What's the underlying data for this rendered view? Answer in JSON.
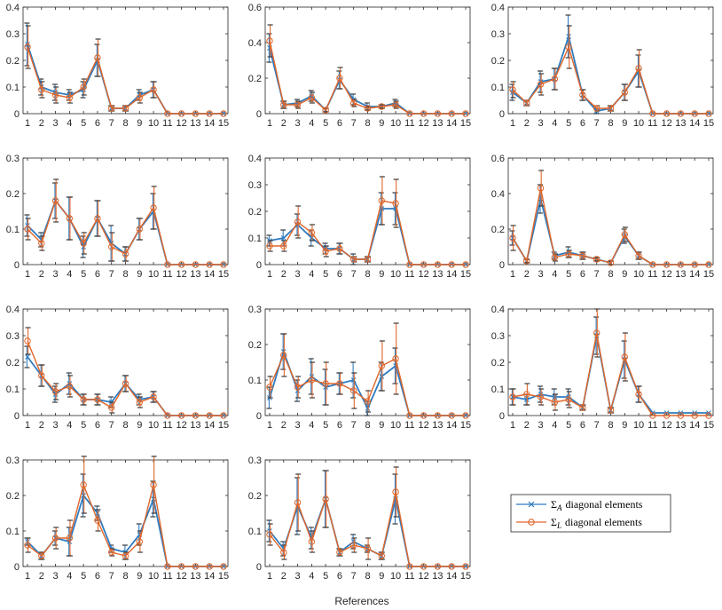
{
  "colors": {
    "sigma_a": "#2e7bbf",
    "sigma_l": "#e0662a",
    "axis": "#262626",
    "errorbar": "#3a3a3a"
  },
  "figure": {
    "xlabel": "References"
  },
  "legend": {
    "placement": "right, bottom row",
    "entries": [
      {
        "sym": "Σ",
        "sub": "A",
        "text": "diagonal elements",
        "marker": "x"
      },
      {
        "sym": "Σ",
        "sub": "L",
        "text": "diagonal elements",
        "marker": "o"
      }
    ]
  },
  "chart_data": [
    {
      "type": "line",
      "x": [
        1,
        2,
        3,
        4,
        5,
        6,
        7,
        8,
        9,
        10,
        11,
        12,
        13,
        14,
        15
      ],
      "ylim": [
        0,
        0.4
      ],
      "yticks": [
        "0",
        "0.1",
        "0.2",
        "0.3",
        "0.4"
      ],
      "grid": false,
      "series": [
        {
          "name": "ΣA diagonal elements",
          "values": [
            0.26,
            0.1,
            0.08,
            0.07,
            0.09,
            0.2,
            0.02,
            0.02,
            0.07,
            0.09,
            0,
            0,
            0,
            0,
            0
          ],
          "err": [
            0.08,
            0.03,
            0.03,
            0.02,
            0.03,
            0.06,
            0.01,
            0.01,
            0.02,
            0.03,
            0,
            0,
            0,
            0,
            0
          ]
        },
        {
          "name": "ΣL diagonal elements",
          "values": [
            0.25,
            0.09,
            0.07,
            0.06,
            0.1,
            0.21,
            0.02,
            0.02,
            0.06,
            0.09,
            0,
            0,
            0,
            0,
            0
          ],
          "err": [
            0.08,
            0.03,
            0.03,
            0.02,
            0.03,
            0.07,
            0.01,
            0.01,
            0.02,
            0.03,
            0,
            0,
            0,
            0,
            0
          ]
        }
      ]
    },
    {
      "type": "line",
      "x": [
        1,
        2,
        3,
        4,
        5,
        6,
        7,
        8,
        9,
        10,
        11,
        12,
        13,
        14,
        15
      ],
      "ylim": [
        0,
        0.6
      ],
      "yticks": [
        "0",
        "0.2",
        "0.4",
        "0.6"
      ],
      "grid": false,
      "series": [
        {
          "name": "ΣA diagonal elements",
          "values": [
            0.37,
            0.05,
            0.06,
            0.1,
            0.02,
            0.19,
            0.08,
            0.04,
            0.04,
            0.06,
            0,
            0,
            0,
            0,
            0
          ],
          "err": [
            0.08,
            0.02,
            0.02,
            0.03,
            0.01,
            0.05,
            0.03,
            0.02,
            0.01,
            0.02,
            0,
            0,
            0,
            0,
            0
          ]
        },
        {
          "name": "ΣL diagonal elements",
          "values": [
            0.41,
            0.05,
            0.05,
            0.09,
            0.02,
            0.2,
            0.06,
            0.03,
            0.04,
            0.05,
            0,
            0,
            0,
            0,
            0
          ],
          "err": [
            0.09,
            0.02,
            0.02,
            0.03,
            0.01,
            0.06,
            0.02,
            0.01,
            0.01,
            0.02,
            0,
            0,
            0,
            0,
            0
          ]
        }
      ]
    },
    {
      "type": "line",
      "x": [
        1,
        2,
        3,
        4,
        5,
        6,
        7,
        8,
        9,
        10,
        11,
        12,
        13,
        14,
        15
      ],
      "ylim": [
        0,
        0.4
      ],
      "yticks": [
        "0",
        "0.1",
        "0.2",
        "0.3",
        "0.4"
      ],
      "grid": false,
      "series": [
        {
          "name": "ΣA diagonal elements",
          "values": [
            0.08,
            0.04,
            0.12,
            0.13,
            0.29,
            0.07,
            0.01,
            0.02,
            0.08,
            0.16,
            0,
            0,
            0,
            0,
            0
          ],
          "err": [
            0.03,
            0.01,
            0.04,
            0.04,
            0.08,
            0.02,
            0.01,
            0.01,
            0.03,
            0.06,
            0,
            0,
            0,
            0,
            0
          ]
        },
        {
          "name": "ΣL diagonal elements",
          "values": [
            0.09,
            0.04,
            0.11,
            0.13,
            0.25,
            0.07,
            0.02,
            0.02,
            0.08,
            0.17,
            0,
            0,
            0,
            0,
            0
          ],
          "err": [
            0.03,
            0.01,
            0.04,
            0.04,
            0.08,
            0.02,
            0.01,
            0.01,
            0.03,
            0.07,
            0,
            0,
            0,
            0,
            0
          ]
        }
      ]
    },
    {
      "type": "line",
      "x": [
        1,
        2,
        3,
        4,
        5,
        6,
        7,
        8,
        9,
        10,
        11,
        12,
        13,
        14,
        15
      ],
      "ylim": [
        0,
        0.3
      ],
      "yticks": [
        "0",
        "0.1",
        "0.2",
        "0.3"
      ],
      "grid": false,
      "series": [
        {
          "name": "ΣA diagonal elements",
          "values": [
            0.11,
            0.07,
            0.18,
            0.13,
            0.05,
            0.13,
            0.06,
            0.03,
            0.1,
            0.15,
            0,
            0,
            0,
            0,
            0
          ],
          "err": [
            0.03,
            0.02,
            0.05,
            0.06,
            0.03,
            0.05,
            0.05,
            0.02,
            0.03,
            0.05,
            0,
            0,
            0,
            0,
            0
          ]
        },
        {
          "name": "ΣL diagonal elements",
          "values": [
            0.1,
            0.06,
            0.18,
            0.13,
            0.06,
            0.13,
            0.05,
            0.03,
            0.1,
            0.16,
            0,
            0,
            0,
            0,
            0
          ],
          "err": [
            0.03,
            0.02,
            0.06,
            0.06,
            0.03,
            0.05,
            0.04,
            0.02,
            0.03,
            0.06,
            0,
            0,
            0,
            0,
            0
          ]
        }
      ]
    },
    {
      "type": "line",
      "x": [
        1,
        2,
        3,
        4,
        5,
        6,
        7,
        8,
        9,
        10,
        11,
        12,
        13,
        14,
        15
      ],
      "ylim": [
        0,
        0.4
      ],
      "yticks": [
        "0",
        "0.1",
        "0.2",
        "0.3",
        "0.4"
      ],
      "grid": false,
      "series": [
        {
          "name": "ΣA diagonal elements",
          "values": [
            0.09,
            0.1,
            0.15,
            0.1,
            0.06,
            0.06,
            0.02,
            0.02,
            0.21,
            0.21,
            0,
            0,
            0,
            0,
            0
          ],
          "err": [
            0.02,
            0.03,
            0.04,
            0.03,
            0.02,
            0.02,
            0.02,
            0.01,
            0.06,
            0.06,
            0,
            0,
            0,
            0,
            0
          ]
        },
        {
          "name": "ΣL diagonal elements",
          "values": [
            0.07,
            0.07,
            0.16,
            0.12,
            0.05,
            0.06,
            0.02,
            0.02,
            0.24,
            0.23,
            0,
            0,
            0,
            0,
            0
          ],
          "err": [
            0.02,
            0.02,
            0.06,
            0.03,
            0.02,
            0.02,
            0.01,
            0.01,
            0.09,
            0.09,
            0,
            0,
            0,
            0,
            0
          ]
        }
      ]
    },
    {
      "type": "line",
      "x": [
        1,
        2,
        3,
        4,
        5,
        6,
        7,
        8,
        9,
        10,
        11,
        12,
        13,
        14,
        15
      ],
      "ylim": [
        0,
        0.6
      ],
      "yticks": [
        "0",
        "0.2",
        "0.4",
        "0.6"
      ],
      "grid": false,
      "series": [
        {
          "name": "ΣA diagonal elements",
          "values": [
            0.15,
            0.02,
            0.37,
            0.05,
            0.07,
            0.05,
            0.03,
            0.01,
            0.16,
            0.05,
            0,
            0,
            0,
            0,
            0
          ],
          "err": [
            0.04,
            0.01,
            0.08,
            0.02,
            0.03,
            0.02,
            0.01,
            0.01,
            0.04,
            0.02,
            0,
            0,
            0,
            0,
            0
          ]
        },
        {
          "name": "ΣL diagonal elements",
          "values": [
            0.15,
            0.02,
            0.43,
            0.04,
            0.06,
            0.05,
            0.03,
            0.01,
            0.17,
            0.05,
            0,
            0,
            0,
            0,
            0
          ],
          "err": [
            0.07,
            0.01,
            0.1,
            0.02,
            0.02,
            0.02,
            0.01,
            0.01,
            0.04,
            0.02,
            0,
            0,
            0,
            0,
            0
          ]
        }
      ]
    },
    {
      "type": "line",
      "x": [
        1,
        2,
        3,
        4,
        5,
        6,
        7,
        8,
        9,
        10,
        11,
        12,
        13,
        14,
        15
      ],
      "ylim": [
        0,
        0.4
      ],
      "yticks": [
        "0",
        "0.1",
        "0.2",
        "0.3",
        "0.4"
      ],
      "grid": false,
      "series": [
        {
          "name": "ΣA diagonal elements",
          "values": [
            0.22,
            0.15,
            0.08,
            0.12,
            0.06,
            0.06,
            0.05,
            0.12,
            0.06,
            0.07,
            0,
            0,
            0,
            0,
            0
          ],
          "err": [
            0.04,
            0.04,
            0.03,
            0.04,
            0.02,
            0.02,
            0.02,
            0.03,
            0.02,
            0.02,
            0,
            0,
            0,
            0,
            0
          ]
        },
        {
          "name": "ΣL diagonal elements",
          "values": [
            0.28,
            0.15,
            0.09,
            0.11,
            0.06,
            0.06,
            0.03,
            0.12,
            0.05,
            0.07,
            0,
            0,
            0,
            0,
            0
          ],
          "err": [
            0.05,
            0.04,
            0.03,
            0.04,
            0.02,
            0.02,
            0.02,
            0.03,
            0.02,
            0.02,
            0,
            0,
            0,
            0,
            0
          ]
        }
      ]
    },
    {
      "type": "line",
      "x": [
        1,
        2,
        3,
        4,
        5,
        6,
        7,
        8,
        9,
        10,
        11,
        12,
        13,
        14,
        15
      ],
      "ylim": [
        0,
        0.3
      ],
      "yticks": [
        "0",
        "0.1",
        "0.2",
        "0.3"
      ],
      "grid": false,
      "series": [
        {
          "name": "ΣA diagonal elements",
          "values": [
            0.05,
            0.18,
            0.07,
            0.11,
            0.08,
            0.09,
            0.1,
            0.02,
            0.11,
            0.14,
            0,
            0,
            0,
            0,
            0
          ],
          "err": [
            0.03,
            0.05,
            0.03,
            0.05,
            0.05,
            0.03,
            0.05,
            0.02,
            0.04,
            0.05,
            0,
            0,
            0,
            0,
            0
          ]
        },
        {
          "name": "ΣL diagonal elements",
          "values": [
            0.08,
            0.17,
            0.08,
            0.1,
            0.09,
            0.09,
            0.07,
            0.04,
            0.14,
            0.16,
            0,
            0,
            0,
            0,
            0
          ],
          "err": [
            0.03,
            0.06,
            0.03,
            0.05,
            0.06,
            0.03,
            0.05,
            0.03,
            0.07,
            0.1,
            0,
            0,
            0,
            0,
            0
          ]
        }
      ]
    },
    {
      "type": "line",
      "x": [
        1,
        2,
        3,
        4,
        5,
        6,
        7,
        8,
        9,
        10,
        11,
        12,
        13,
        14,
        15
      ],
      "ylim": [
        0,
        0.4
      ],
      "yticks": [
        "0",
        "0.1",
        "0.2",
        "0.3",
        "0.4"
      ],
      "grid": false,
      "series": [
        {
          "name": "ΣA diagonal elements",
          "values": [
            0.07,
            0.06,
            0.08,
            0.07,
            0.07,
            0.03,
            0.3,
            0.02,
            0.21,
            0.08,
            0.01,
            0.01,
            0.01,
            0.01,
            0.01
          ],
          "err": [
            0.03,
            0.02,
            0.03,
            0.03,
            0.03,
            0.01,
            0.07,
            0.01,
            0.07,
            0.03,
            0,
            0,
            0,
            0,
            0
          ]
        },
        {
          "name": "ΣL diagonal elements",
          "values": [
            0.07,
            0.08,
            0.07,
            0.05,
            0.06,
            0.03,
            0.31,
            0.02,
            0.22,
            0.08,
            0,
            0,
            0,
            0,
            0
          ],
          "err": [
            0.03,
            0.04,
            0.03,
            0.03,
            0.03,
            0.01,
            0.09,
            0.01,
            0.09,
            0.03,
            0,
            0,
            0,
            0,
            0
          ]
        }
      ]
    },
    {
      "type": "line",
      "x": [
        1,
        2,
        3,
        4,
        5,
        6,
        7,
        8,
        9,
        10,
        11,
        12,
        13,
        14,
        15
      ],
      "ylim": [
        0,
        0.3
      ],
      "yticks": [
        "0",
        "0.1",
        "0.2",
        "0.3"
      ],
      "grid": false,
      "series": [
        {
          "name": "ΣA diagonal elements",
          "values": [
            0.07,
            0.03,
            0.08,
            0.07,
            0.2,
            0.15,
            0.05,
            0.04,
            0.09,
            0.19,
            0,
            0,
            0,
            0,
            0
          ],
          "err": [
            0.01,
            0.01,
            0.02,
            0.04,
            0.06,
            0.02,
            0.01,
            0.02,
            0.03,
            0.05,
            0,
            0,
            0,
            0,
            0
          ]
        },
        {
          "name": "ΣL diagonal elements",
          "values": [
            0.06,
            0.03,
            0.08,
            0.08,
            0.23,
            0.13,
            0.04,
            0.03,
            0.07,
            0.23,
            0,
            0,
            0,
            0,
            0
          ],
          "err": [
            0.02,
            0.01,
            0.03,
            0.05,
            0.08,
            0.03,
            0.01,
            0.01,
            0.03,
            0.08,
            0,
            0,
            0,
            0,
            0
          ]
        }
      ]
    },
    {
      "type": "line",
      "x": [
        1,
        2,
        3,
        4,
        5,
        6,
        7,
        8,
        9,
        10,
        11,
        12,
        13,
        14,
        15
      ],
      "ylim": [
        0,
        0.3
      ],
      "yticks": [
        "0",
        "0.1",
        "0.2",
        "0.3"
      ],
      "grid": false,
      "series": [
        {
          "name": "ΣA diagonal elements",
          "values": [
            0.1,
            0.05,
            0.17,
            0.08,
            0.19,
            0.04,
            0.07,
            0.05,
            0.03,
            0.19,
            0,
            0,
            0,
            0,
            0
          ],
          "err": [
            0.03,
            0.02,
            0.08,
            0.03,
            0.08,
            0.01,
            0.02,
            0.01,
            0.01,
            0.07,
            0,
            0,
            0,
            0,
            0
          ]
        },
        {
          "name": "ΣL diagonal elements",
          "values": [
            0.09,
            0.04,
            0.18,
            0.07,
            0.19,
            0.04,
            0.06,
            0.05,
            0.03,
            0.21,
            0,
            0,
            0,
            0,
            0
          ],
          "err": [
            0.03,
            0.02,
            0.08,
            0.03,
            0.08,
            0.01,
            0.02,
            0.03,
            0.01,
            0.07,
            0,
            0,
            0,
            0,
            0
          ]
        }
      ]
    }
  ]
}
